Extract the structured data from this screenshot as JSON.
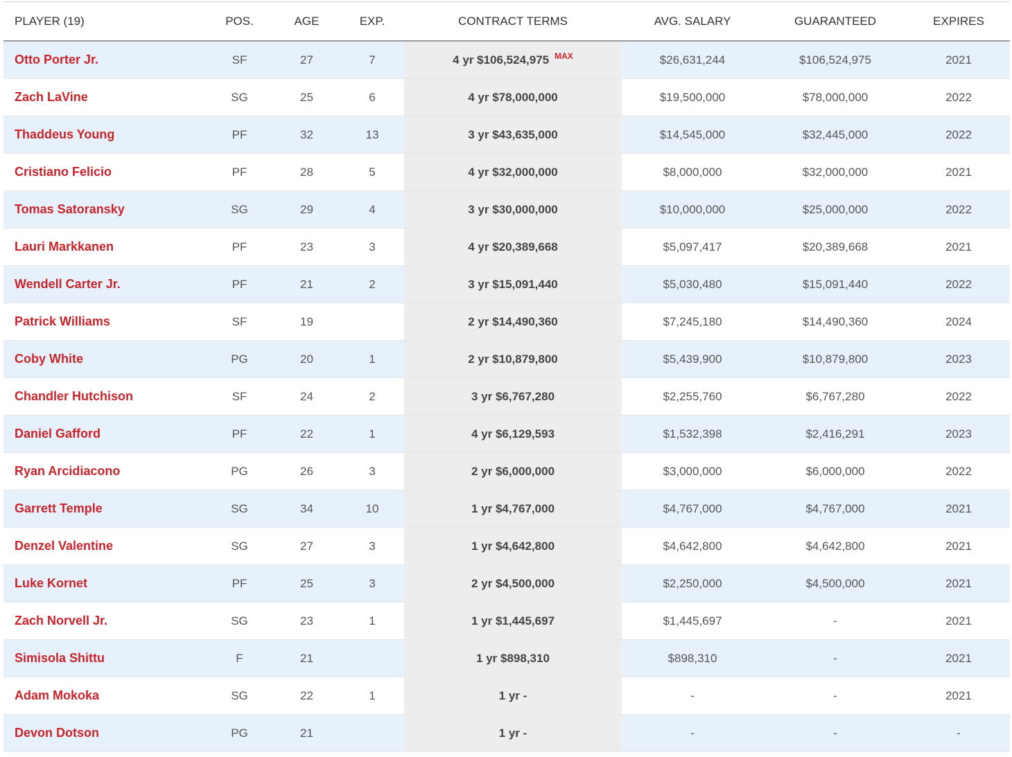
{
  "headers": {
    "player": "PLAYER (19)",
    "pos": "POS.",
    "age": "AGE",
    "exp": "EXP.",
    "contract": "CONTRACT TERMS",
    "avg_salary": "AVG. SALARY",
    "guaranteed": "GUARANTEED",
    "expires": "EXPIRES"
  },
  "colors": {
    "player_link": "#c8242b",
    "row_alt": "#e6f1fb",
    "contract_bg": "#ededed",
    "max_badge": "#d4202a"
  },
  "rows": [
    {
      "player": "Otto Porter Jr.",
      "pos": "SF",
      "age": "27",
      "exp": "7",
      "contract": "4 yr $106,524,975",
      "badge": "MAX",
      "avg_salary": "$26,631,244",
      "guaranteed": "$106,524,975",
      "expires": "2021"
    },
    {
      "player": "Zach LaVine",
      "pos": "SG",
      "age": "25",
      "exp": "6",
      "contract": "4 yr $78,000,000",
      "badge": "",
      "avg_salary": "$19,500,000",
      "guaranteed": "$78,000,000",
      "expires": "2022"
    },
    {
      "player": "Thaddeus Young",
      "pos": "PF",
      "age": "32",
      "exp": "13",
      "contract": "3 yr $43,635,000",
      "badge": "",
      "avg_salary": "$14,545,000",
      "guaranteed": "$32,445,000",
      "expires": "2022"
    },
    {
      "player": "Cristiano Felicio",
      "pos": "PF",
      "age": "28",
      "exp": "5",
      "contract": "4 yr $32,000,000",
      "badge": "",
      "avg_salary": "$8,000,000",
      "guaranteed": "$32,000,000",
      "expires": "2021"
    },
    {
      "player": "Tomas Satoransky",
      "pos": "SG",
      "age": "29",
      "exp": "4",
      "contract": "3 yr $30,000,000",
      "badge": "",
      "avg_salary": "$10,000,000",
      "guaranteed": "$25,000,000",
      "expires": "2022"
    },
    {
      "player": "Lauri Markkanen",
      "pos": "PF",
      "age": "23",
      "exp": "3",
      "contract": "4 yr $20,389,668",
      "badge": "",
      "avg_salary": "$5,097,417",
      "guaranteed": "$20,389,668",
      "expires": "2021"
    },
    {
      "player": "Wendell Carter Jr.",
      "pos": "PF",
      "age": "21",
      "exp": "2",
      "contract": "3 yr $15,091,440",
      "badge": "",
      "avg_salary": "$5,030,480",
      "guaranteed": "$15,091,440",
      "expires": "2022"
    },
    {
      "player": "Patrick Williams",
      "pos": "SF",
      "age": "19",
      "exp": "",
      "contract": "2 yr $14,490,360",
      "badge": "",
      "avg_salary": "$7,245,180",
      "guaranteed": "$14,490,360",
      "expires": "2024"
    },
    {
      "player": "Coby White",
      "pos": "PG",
      "age": "20",
      "exp": "1",
      "contract": "2 yr $10,879,800",
      "badge": "",
      "avg_salary": "$5,439,900",
      "guaranteed": "$10,879,800",
      "expires": "2023"
    },
    {
      "player": "Chandler Hutchison",
      "pos": "SF",
      "age": "24",
      "exp": "2",
      "contract": "3 yr $6,767,280",
      "badge": "",
      "avg_salary": "$2,255,760",
      "guaranteed": "$6,767,280",
      "expires": "2022"
    },
    {
      "player": "Daniel Gafford",
      "pos": "PF",
      "age": "22",
      "exp": "1",
      "contract": "4 yr $6,129,593",
      "badge": "",
      "avg_salary": "$1,532,398",
      "guaranteed": "$2,416,291",
      "expires": "2023"
    },
    {
      "player": "Ryan Arcidiacono",
      "pos": "PG",
      "age": "26",
      "exp": "3",
      "contract": "2 yr $6,000,000",
      "badge": "",
      "avg_salary": "$3,000,000",
      "guaranteed": "$6,000,000",
      "expires": "2022"
    },
    {
      "player": "Garrett Temple",
      "pos": "SG",
      "age": "34",
      "exp": "10",
      "contract": "1 yr $4,767,000",
      "badge": "",
      "avg_salary": "$4,767,000",
      "guaranteed": "$4,767,000",
      "expires": "2021"
    },
    {
      "player": "Denzel Valentine",
      "pos": "SG",
      "age": "27",
      "exp": "3",
      "contract": "1 yr $4,642,800",
      "badge": "",
      "avg_salary": "$4,642,800",
      "guaranteed": "$4,642,800",
      "expires": "2021"
    },
    {
      "player": "Luke Kornet",
      "pos": "PF",
      "age": "25",
      "exp": "3",
      "contract": "2 yr $4,500,000",
      "badge": "",
      "avg_salary": "$2,250,000",
      "guaranteed": "$4,500,000",
      "expires": "2021"
    },
    {
      "player": "Zach Norvell Jr.",
      "pos": "SG",
      "age": "23",
      "exp": "1",
      "contract": "1 yr $1,445,697",
      "badge": "",
      "avg_salary": "$1,445,697",
      "guaranteed": "-",
      "expires": "2021"
    },
    {
      "player": "Simisola Shittu",
      "pos": "F",
      "age": "21",
      "exp": "",
      "contract": "1 yr $898,310",
      "badge": "",
      "avg_salary": "$898,310",
      "guaranteed": "-",
      "expires": "2021"
    },
    {
      "player": "Adam Mokoka",
      "pos": "SG",
      "age": "22",
      "exp": "1",
      "contract": "1 yr -",
      "badge": "",
      "avg_salary": "-",
      "guaranteed": "-",
      "expires": "2021"
    },
    {
      "player": "Devon Dotson",
      "pos": "PG",
      "age": "21",
      "exp": "",
      "contract": "1 yr -",
      "badge": "",
      "avg_salary": "-",
      "guaranteed": "-",
      "expires": "-"
    }
  ]
}
